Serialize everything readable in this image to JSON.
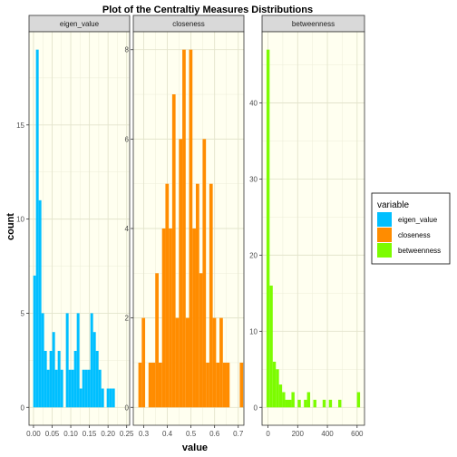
{
  "chart_data": {
    "type": "bar",
    "title": "Plot of the Centraltiy Measures Distributions",
    "xlabel": "value",
    "ylabel": "count",
    "grid": true,
    "legend_placement": "right",
    "legend": {
      "title": "variable",
      "entries": [
        {
          "label": "eigen_value",
          "color": "#00BFFF"
        },
        {
          "label": "closeness",
          "color": "#FF8C00"
        },
        {
          "label": "betweenness",
          "color": "#7CFC00"
        }
      ]
    },
    "panels": [
      {
        "name": "eigen_value",
        "color": "#00BFFF",
        "xlim": [
          -0.012,
          0.258
        ],
        "ylim": [
          -0.95,
          19.95
        ],
        "xticks": [
          0.0,
          0.05,
          0.1,
          0.15,
          0.2,
          0.25
        ],
        "xtick_labels": [
          "0.00",
          "0.05",
          "0.10",
          "0.15",
          "0.20",
          "0.25"
        ],
        "yticks": [
          0,
          5,
          10,
          15
        ],
        "ytick_labels": [
          "0",
          "5",
          "10",
          "15"
        ],
        "bin_start": -0.0007,
        "bin_width": 0.0073,
        "counts": [
          7,
          19,
          11,
          5,
          3,
          2,
          3,
          4,
          2,
          3,
          2,
          0,
          5,
          2,
          2,
          3,
          5,
          1,
          2,
          2,
          2,
          5,
          4,
          3,
          2,
          1,
          0,
          1,
          1,
          1
        ]
      },
      {
        "name": "closeness",
        "color": "#FF8C00",
        "xlim": [
          0.256,
          0.724
        ],
        "ylim": [
          -0.4,
          8.4
        ],
        "xticks": [
          0.3,
          0.4,
          0.5,
          0.6,
          0.7
        ],
        "xtick_labels": [
          "0.3",
          "0.4",
          "0.5",
          "0.6",
          "0.7"
        ],
        "yticks": [
          0,
          2,
          4,
          6,
          8
        ],
        "ytick_labels": [
          "0",
          "2",
          "4",
          "6",
          "8"
        ],
        "bin_start": 0.2775,
        "bin_width": 0.0143,
        "counts": [
          1,
          2,
          0,
          1,
          1,
          3,
          1,
          4,
          5,
          4,
          7,
          2,
          6,
          8,
          2,
          8,
          4,
          5,
          3,
          6,
          1,
          5,
          2,
          1,
          2,
          1,
          1,
          0,
          0,
          0,
          1
        ]
      },
      {
        "name": "betweenness",
        "color": "#7CFC00",
        "xlim": [
          -40,
          650
        ],
        "ylim": [
          -2.35,
          49.35
        ],
        "xticks": [
          0,
          200,
          400,
          600
        ],
        "xtick_labels": [
          "0",
          "200",
          "400",
          "600"
        ],
        "yticks": [
          0,
          10,
          20,
          30,
          40
        ],
        "ytick_labels": [
          "0",
          "10",
          "20",
          "30",
          "40"
        ],
        "bin_start": -10,
        "bin_width": 21,
        "counts": [
          47,
          16,
          6,
          5,
          3,
          2,
          1,
          1,
          2,
          0,
          1,
          0,
          1,
          2,
          0,
          1,
          0,
          0,
          1,
          0,
          1,
          0,
          0,
          1,
          0,
          0,
          0,
          0,
          0,
          2
        ]
      }
    ]
  }
}
